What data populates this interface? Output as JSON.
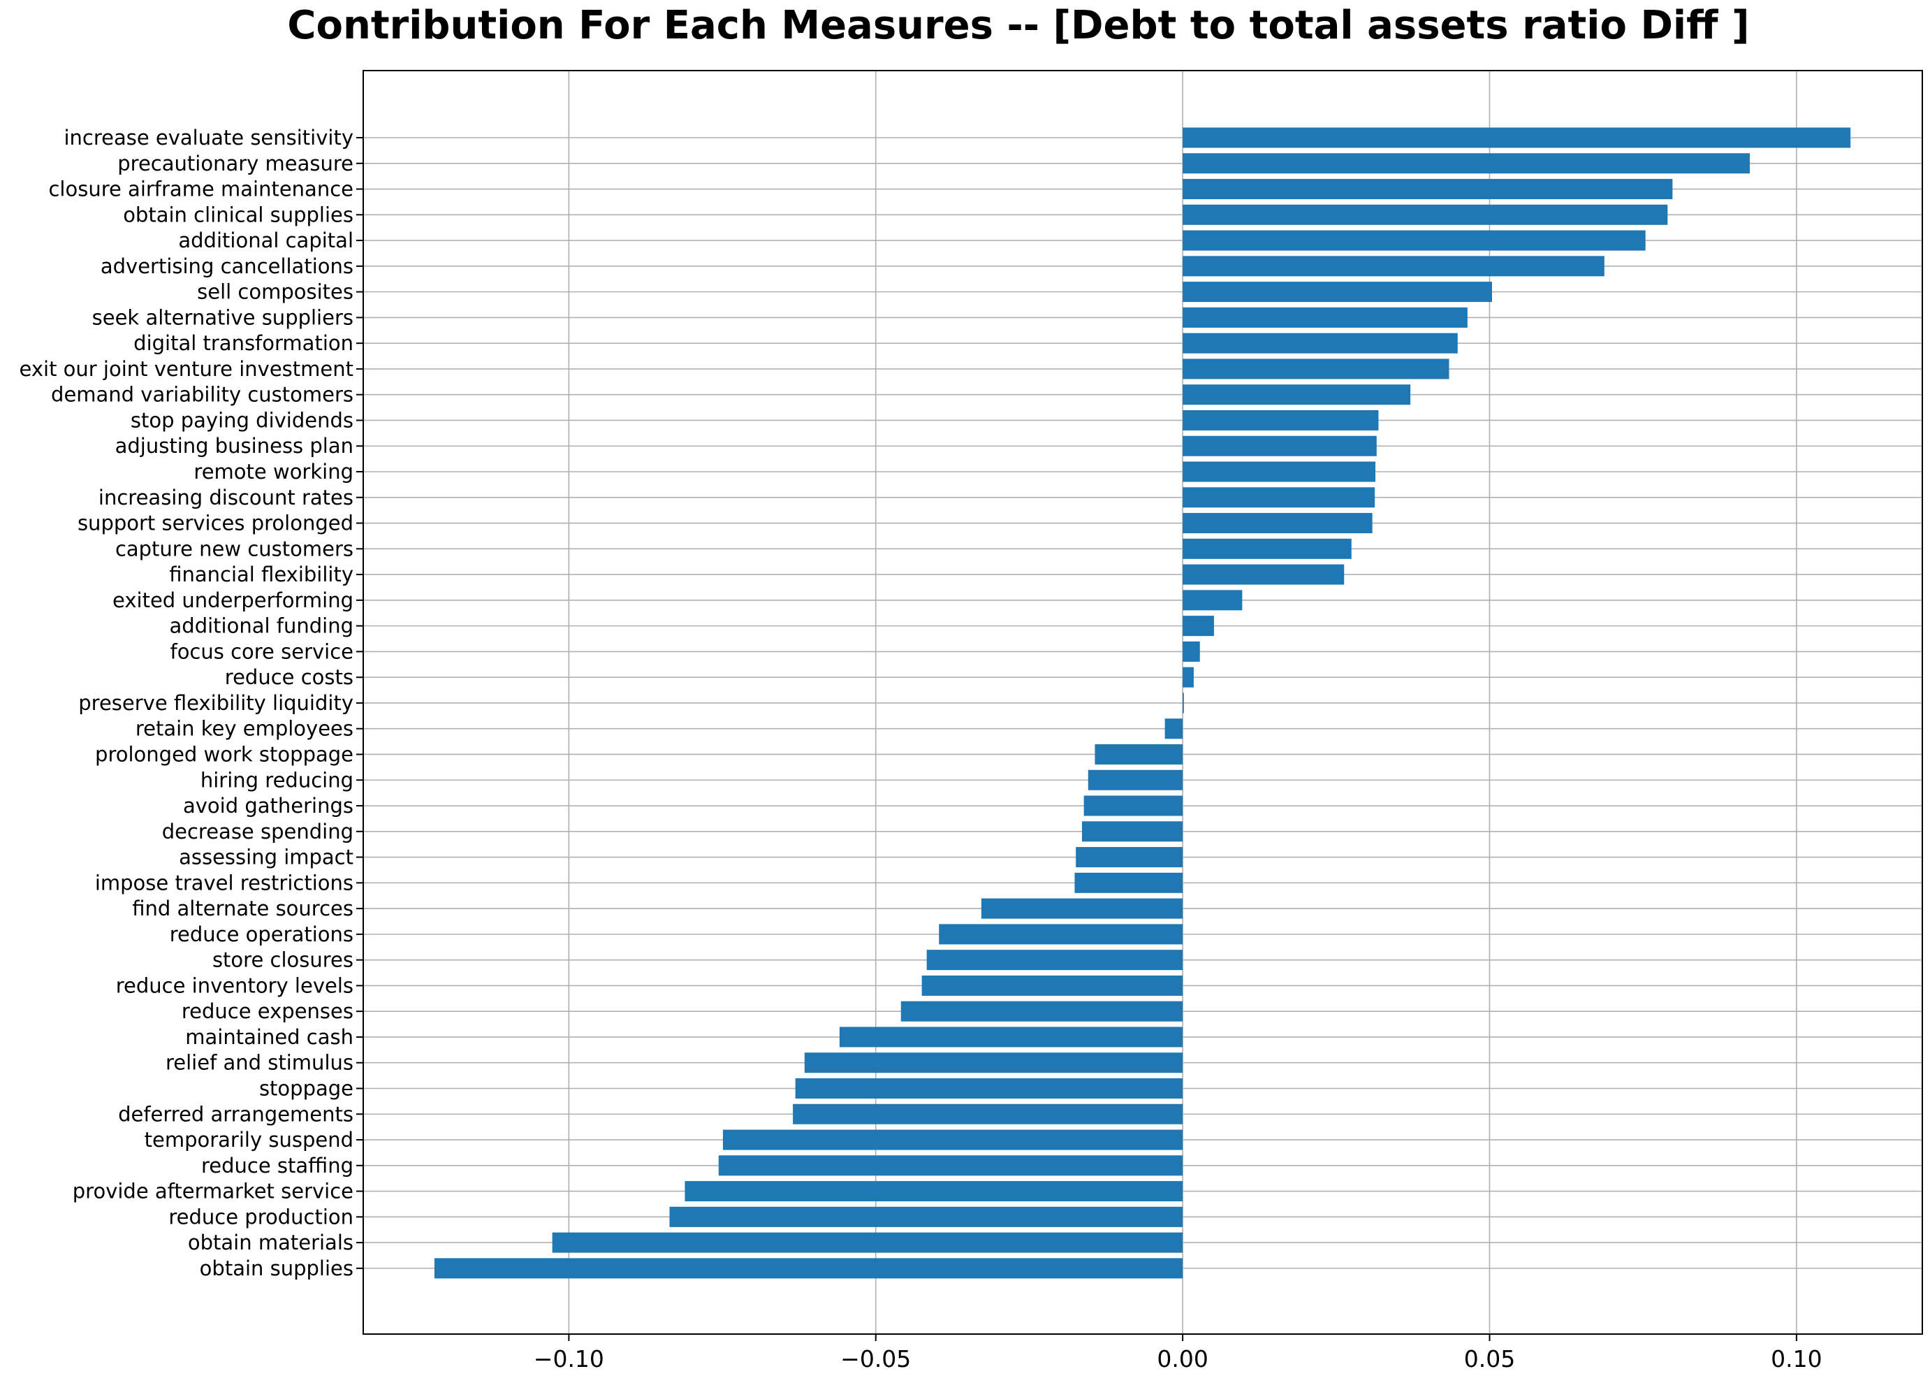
{
  "chart_data": {
    "type": "bar",
    "orientation": "horizontal",
    "title": "Contribution For Each Measures -- [Debt to total assets ratio Diff ]",
    "xlabel": "",
    "ylabel": "",
    "xlim": [
      -0.1335,
      0.1205
    ],
    "xticks": [
      -0.1,
      -0.05,
      0.0,
      0.05,
      0.1
    ],
    "xtick_labels": [
      "−0.10",
      "−0.05",
      "0.00",
      "0.05",
      "0.10"
    ],
    "grid": true,
    "bar_color": "#1f77b4",
    "categories": [
      "increase evaluate sensitivity",
      "precautionary measure",
      "closure airframe maintenance",
      "obtain clinical supplies",
      "additional capital",
      "advertising cancellations",
      "sell composites",
      "seek alternative suppliers",
      "digital transformation",
      "exit our joint venture investment",
      "demand variability customers",
      "stop paying dividends",
      "adjusting business plan",
      "remote working",
      "increasing discount rates",
      "support services prolonged",
      "capture new customers",
      "financial flexibility",
      "exited underperforming",
      "additional funding",
      "focus core service",
      "reduce costs",
      "preserve flexibility liquidity",
      "retain key employees",
      "prolonged work stoppage",
      "hiring reducing",
      "avoid gatherings",
      "decrease spending",
      "assessing impact",
      "impose travel restrictions",
      "find alternate sources",
      "reduce operations",
      "store closures",
      "reduce inventory levels",
      "reduce expenses",
      "maintained cash",
      "relief and stimulus",
      "stoppage",
      "deferred arrangements",
      "temporarily suspend",
      "reduce staffing",
      "provide aftermarket service",
      "reduce production",
      "obtain materials",
      "obtain supplies"
    ],
    "values": [
      0.1088,
      0.0924,
      0.0798,
      0.079,
      0.0754,
      0.0687,
      0.0504,
      0.0464,
      0.0448,
      0.0434,
      0.0371,
      0.0319,
      0.0316,
      0.0314,
      0.0313,
      0.0309,
      0.0275,
      0.0263,
      0.0097,
      0.0051,
      0.0028,
      0.0018,
      0.0002,
      -0.0029,
      -0.0143,
      -0.0154,
      -0.0161,
      -0.0164,
      -0.0174,
      -0.0176,
      -0.0328,
      -0.0397,
      -0.0417,
      -0.0425,
      -0.0459,
      -0.0559,
      -0.0616,
      -0.0631,
      -0.0635,
      -0.0749,
      -0.0756,
      -0.0811,
      -0.0836,
      -0.1027,
      -0.1219
    ]
  }
}
